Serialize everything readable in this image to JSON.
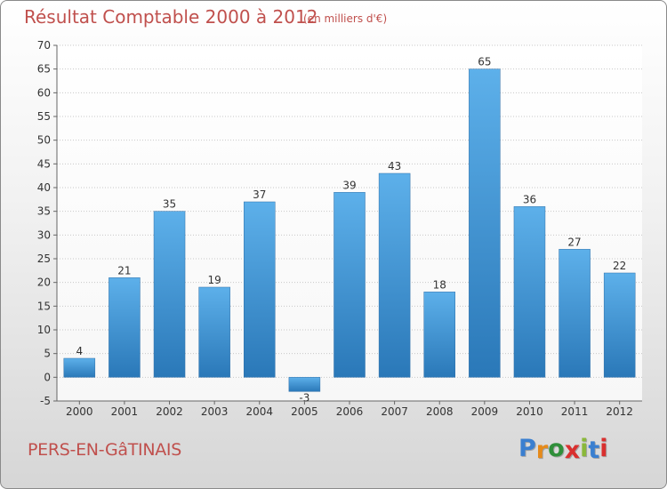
{
  "title": "Résultat Comptable 2000 à 2012",
  "unit_note": "(en milliers d'€)",
  "place": "PERS-EN-GâTINAIS",
  "logo": {
    "letters": [
      "P",
      "r",
      "o",
      "x",
      "i",
      "t",
      "i"
    ],
    "colors": [
      "#3a7fd0",
      "#e68a1a",
      "#2f8f3a",
      "#d9302f",
      "#8ab83a",
      "#3a7fd0",
      "#d9302f"
    ]
  },
  "colors": {
    "bar": "#3d97d8",
    "title": "#c0504d"
  },
  "chart_data": {
    "type": "bar",
    "categories": [
      "2000",
      "2001",
      "2002",
      "2003",
      "2004",
      "2005",
      "2006",
      "2007",
      "2008",
      "2009",
      "2010",
      "2011",
      "2012"
    ],
    "values": [
      4,
      21,
      35,
      19,
      37,
      -3,
      39,
      43,
      18,
      65,
      36,
      27,
      22
    ],
    "ylim": [
      -5,
      70
    ],
    "yticks": [
      -5,
      0,
      5,
      10,
      15,
      20,
      25,
      30,
      35,
      40,
      45,
      50,
      55,
      60,
      65,
      70
    ],
    "grid": true
  }
}
